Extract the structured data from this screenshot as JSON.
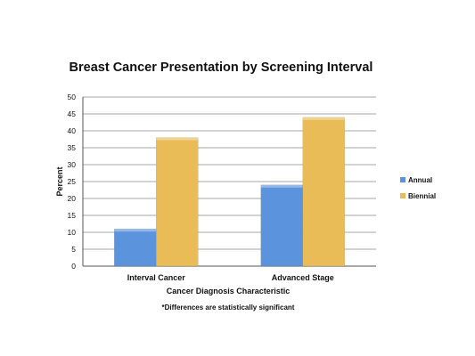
{
  "chart_data": {
    "type": "bar",
    "title": "Breast Cancer Presentation by Screening Interval",
    "xlabel": "Cancer Diagnosis Characteristic",
    "ylabel": "Percent",
    "categories": [
      "Interval Cancer",
      "Advanced Stage"
    ],
    "series": [
      {
        "name": "Annual",
        "values": [
          11,
          24
        ],
        "color": "#5b93dc"
      },
      {
        "name": "Biennial",
        "values": [
          38,
          44
        ],
        "color": "#e9bc57"
      }
    ],
    "ylim": [
      0,
      50
    ],
    "yticks": [
      0,
      5,
      10,
      15,
      20,
      25,
      30,
      35,
      40,
      45,
      50
    ],
    "grid": true,
    "legend_position": "right",
    "footnote": "*Differences are statistically significant"
  }
}
